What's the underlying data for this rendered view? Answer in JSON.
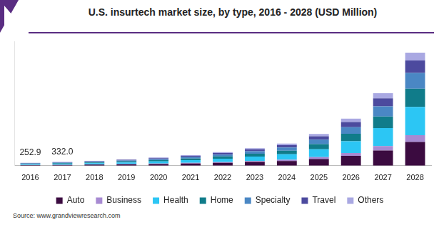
{
  "chart_data": {
    "type": "bar",
    "title": "U.S. insurtech market size, by type, 2016 - 2028 (USD Million)",
    "source": "Source: www.grandviewresearch.com",
    "categories": [
      "2016",
      "2017",
      "2018",
      "2019",
      "2020",
      "2021",
      "2022",
      "2023",
      "2024",
      "2025",
      "2026",
      "2027",
      "2028"
    ],
    "series": [
      {
        "name": "Auto",
        "color": "#3b0b40",
        "values": [
          53.1,
          69.7,
          90,
          118,
          151,
          195,
          252,
          326,
          410,
          588,
          872,
          1344,
          2100
        ]
      },
      {
        "name": "Business",
        "color": "#a78ad2",
        "values": [
          15.2,
          19.9,
          26,
          34,
          43,
          56,
          72,
          93,
          117,
          168,
          249,
          384,
          600
        ]
      },
      {
        "name": "Health",
        "color": "#2cc6f4",
        "values": [
          63.2,
          83.0,
          108,
          140,
          180,
          233,
          300,
          388,
          488,
          700,
          1038,
          1600,
          2500
        ]
      },
      {
        "name": "Home",
        "color": "#107c8a",
        "values": [
          40.5,
          53.1,
          69,
          90,
          115,
          149,
          192,
          248,
          312,
          448,
          664,
          1024,
          1600
        ]
      },
      {
        "name": "Specialty",
        "color": "#4a87c4",
        "values": [
          35.4,
          46.5,
          60,
          78,
          101,
          130,
          168,
          217,
          273,
          392,
          581,
          896,
          1400
        ]
      },
      {
        "name": "Travel",
        "color": "#4c4a9e",
        "values": [
          27.8,
          36.5,
          47,
          62,
          79,
          102,
          132,
          171,
          215,
          308,
          456,
          704,
          1100
        ]
      },
      {
        "name": "Others",
        "color": "#a9a8e2",
        "values": [
          17.7,
          23.3,
          30,
          38,
          51,
          65,
          84,
          107,
          135,
          196,
          290,
          448,
          700
        ]
      }
    ],
    "totals": [
      252.9,
      332.0,
      null,
      null,
      null,
      null,
      null,
      null,
      null,
      null,
      null,
      null,
      null
    ],
    "total_labels": [
      "252.9",
      "332.0",
      null,
      null,
      null,
      null,
      null,
      null,
      null,
      null,
      null,
      null,
      null
    ],
    "ylim": [
      0,
      11000
    ],
    "stacked": true,
    "grid": false,
    "legend": "bottom",
    "tick_labels": "x"
  }
}
